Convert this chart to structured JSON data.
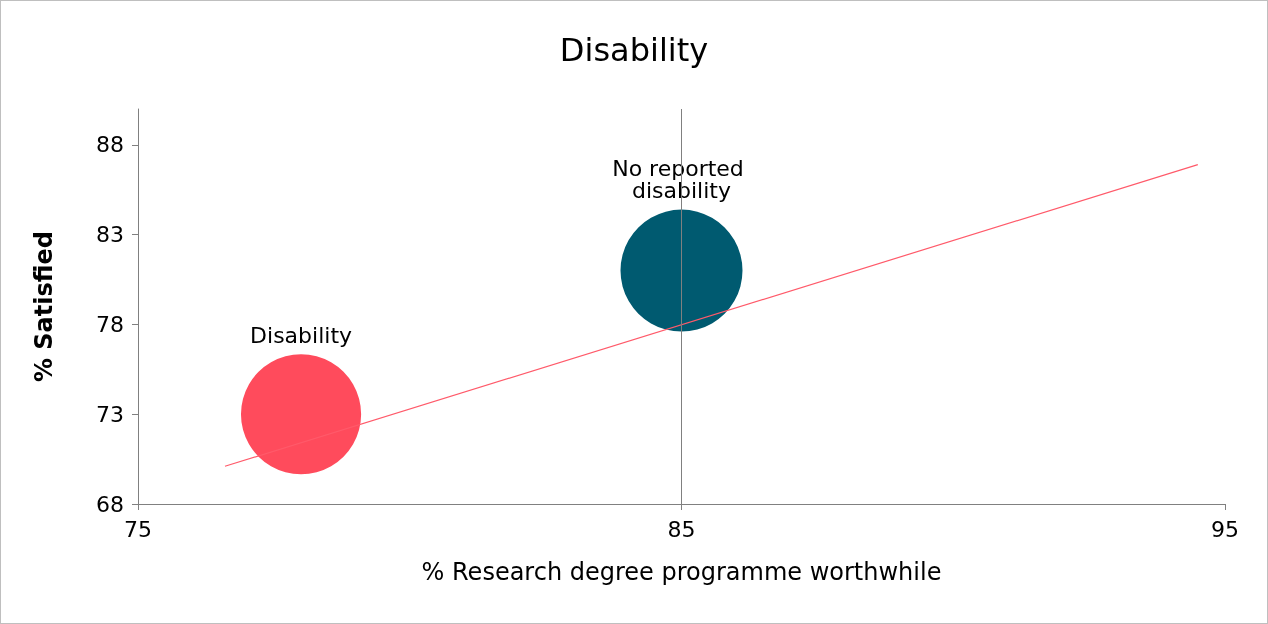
{
  "chart_data": {
    "type": "bubble",
    "title": "Disability",
    "xlabel": "% Research degree programme worthwhile",
    "ylabel": "% Satisfied",
    "xlim": [
      75,
      95
    ],
    "xticks": [
      75,
      85,
      95
    ],
    "ylim": [
      68,
      90
    ],
    "yticks": [
      68,
      73,
      78,
      83,
      88
    ],
    "grid": false,
    "legend": false,
    "ref_lines": [
      {
        "axis": "x",
        "value": 85,
        "color": "#808080"
      }
    ],
    "series": [
      {
        "name": "Disability",
        "color": "#ff4b5c",
        "x": [
          78
        ],
        "values": [
          73
        ],
        "sizes": [
          0.97
        ]
      },
      {
        "name": "No reported disability",
        "color": "#005a70",
        "x": [
          85
        ],
        "values": [
          81
        ],
        "sizes": [
          1
        ]
      },
      {
        "type": "line",
        "color": "#ff5a6a",
        "x": [
          76.6,
          94.5
        ],
        "values": [
          70.1,
          86.9
        ],
        "marker": "none"
      }
    ]
  }
}
